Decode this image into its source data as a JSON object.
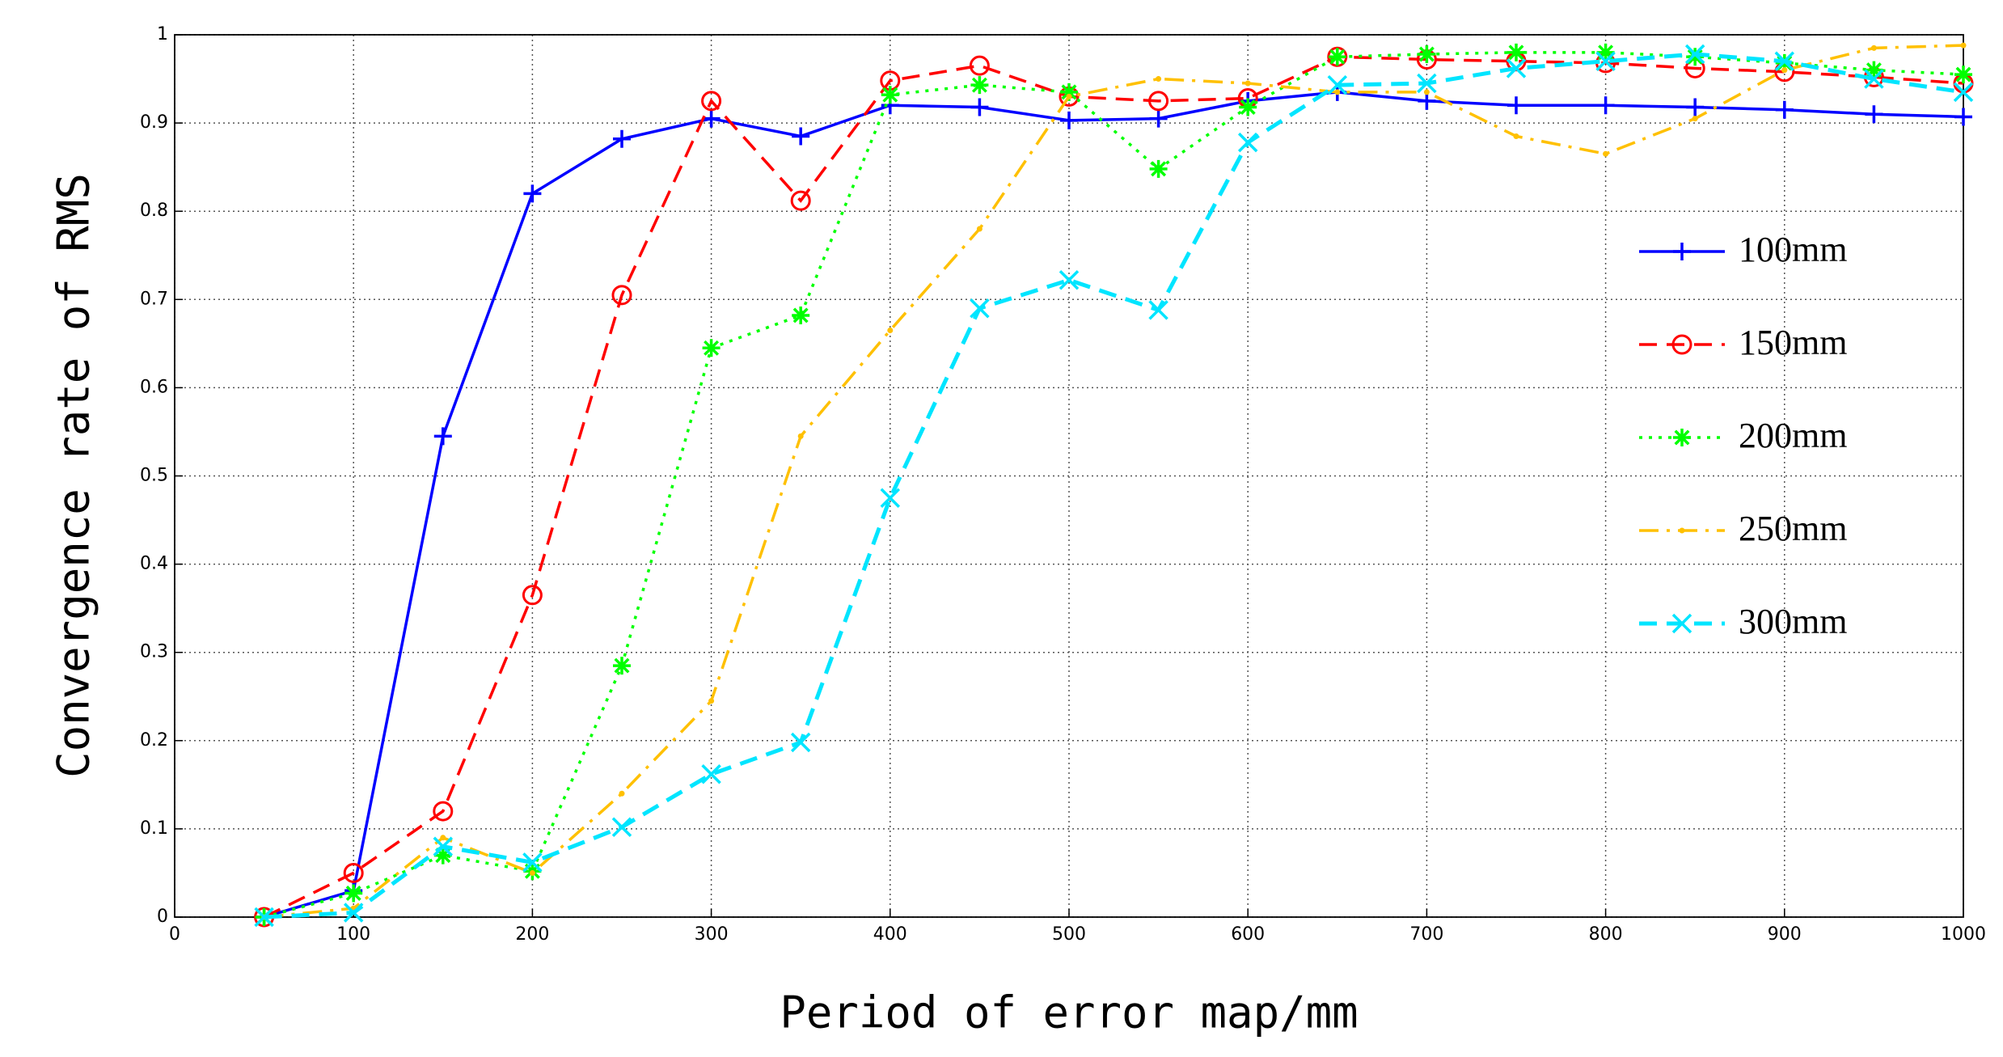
{
  "chart_data": {
    "type": "line",
    "x_label": "Period of error map/mm",
    "y_label": "Convergence rate of RMS",
    "x": [
      50,
      100,
      150,
      200,
      250,
      300,
      350,
      400,
      450,
      500,
      550,
      600,
      650,
      700,
      750,
      800,
      850,
      900,
      950,
      1000
    ],
    "series": [
      {
        "name": "100mm",
        "color": "#0000ff",
        "marker": "+",
        "linestyle": "-",
        "values": [
          0,
          0.03,
          0.545,
          0.82,
          0.882,
          0.905,
          0.885,
          0.92,
          0.918,
          0.903,
          0.905,
          0.925,
          0.935,
          0.925,
          0.92,
          0.92,
          0.918,
          0.915,
          0.91,
          0.907
        ]
      },
      {
        "name": "150mm",
        "color": "#ff0000",
        "marker": "o",
        "linestyle": "--",
        "values": [
          0,
          0.05,
          0.12,
          0.365,
          0.705,
          0.925,
          0.812,
          0.948,
          0.965,
          0.93,
          0.925,
          0.928,
          0.975,
          0.972,
          0.97,
          0.968,
          0.962,
          0.958,
          0.952,
          0.945
        ]
      },
      {
        "name": "200mm",
        "color": "#00ff00",
        "marker": "*",
        "linestyle": ":",
        "values": [
          0,
          0.027,
          0.07,
          0.052,
          0.285,
          0.645,
          0.682,
          0.932,
          0.943,
          0.935,
          0.848,
          0.918,
          0.975,
          0.978,
          0.98,
          0.98,
          0.975,
          0.968,
          0.96,
          0.955
        ]
      },
      {
        "name": "250mm",
        "color": "#ffc000",
        "marker": ".",
        "linestyle": "-.",
        "values": [
          0,
          0.01,
          0.09,
          0.05,
          0.14,
          0.245,
          0.545,
          0.665,
          0.78,
          0.93,
          0.95,
          0.945,
          0.935,
          0.935,
          0.885,
          0.865,
          0.905,
          0.96,
          0.985,
          0.988
        ]
      },
      {
        "name": "300mm",
        "color": "#00e5ff",
        "marker": "x",
        "linestyle": "--",
        "values": [
          0,
          0.005,
          0.08,
          0.062,
          0.102,
          0.162,
          0.198,
          0.475,
          0.69,
          0.722,
          0.688,
          0.878,
          0.943,
          0.945,
          0.962,
          0.97,
          0.978,
          0.97,
          0.95,
          0.935
        ]
      }
    ],
    "xlim": [
      0,
      1000
    ],
    "xticks": [
      0,
      100,
      200,
      300,
      400,
      500,
      600,
      700,
      800,
      900,
      1000
    ],
    "ylim": [
      0,
      1
    ],
    "yticks": [
      0,
      0.1,
      0.2,
      0.3,
      0.4,
      0.5,
      0.6,
      0.7,
      0.8,
      0.9,
      1
    ],
    "grid": true,
    "legend": "right"
  }
}
